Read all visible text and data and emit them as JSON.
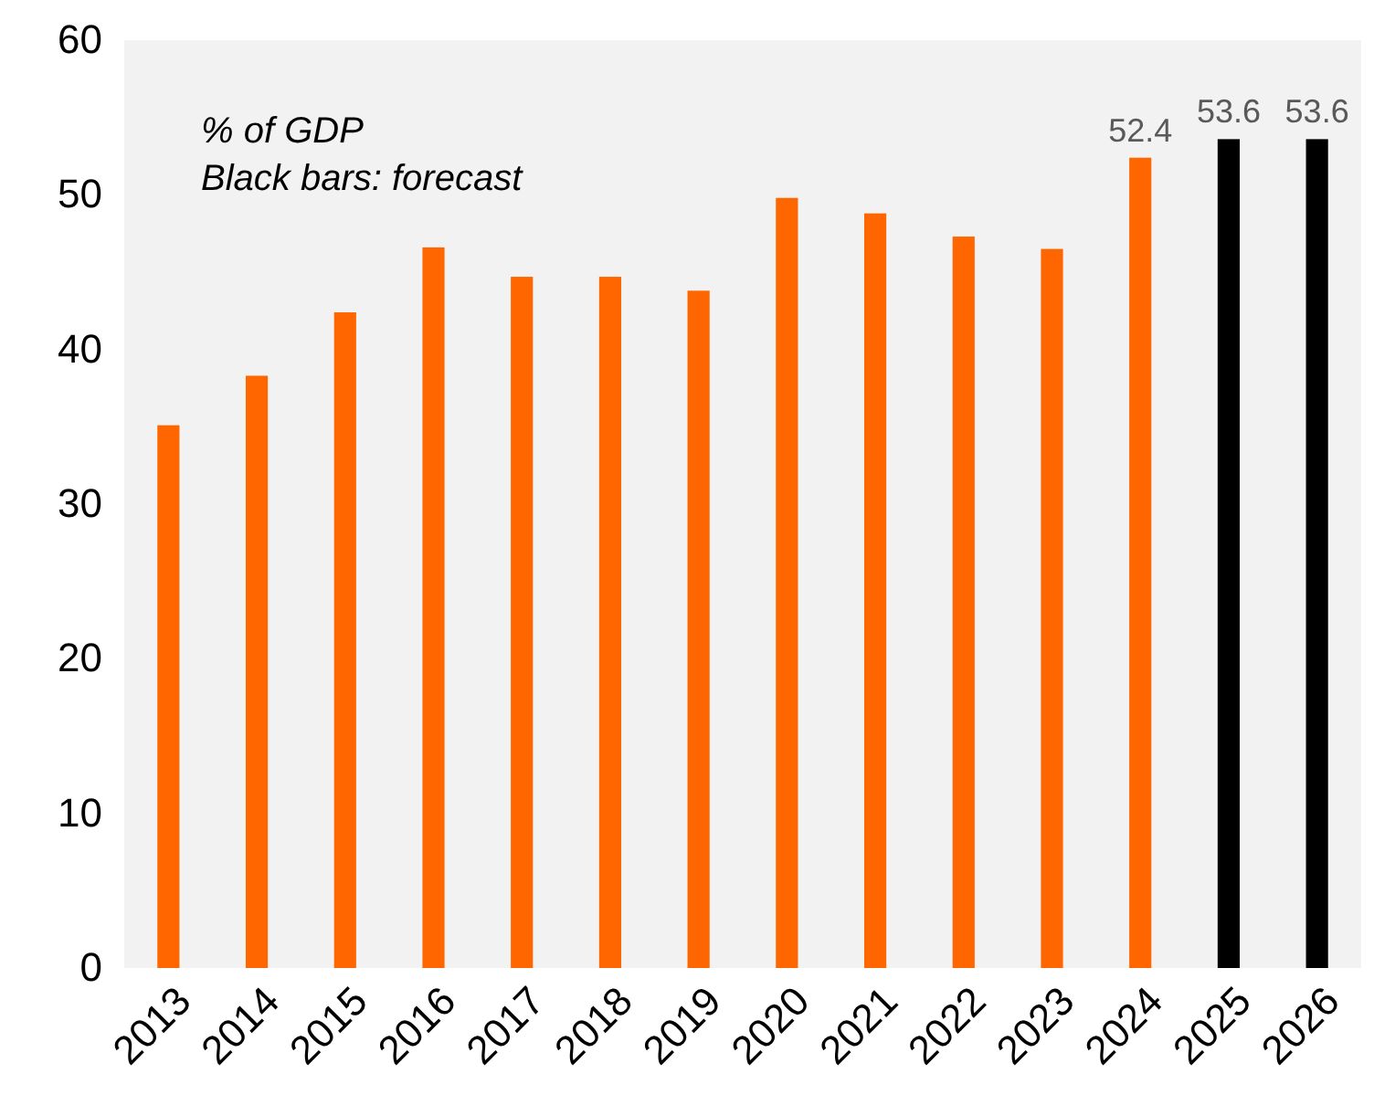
{
  "chart_data": {
    "type": "bar",
    "categories": [
      "2013",
      "2014",
      "2015",
      "2016",
      "2017",
      "2018",
      "2019",
      "2020",
      "2021",
      "2022",
      "2023",
      "2024",
      "2025",
      "2026"
    ],
    "values": [
      35.1,
      38.3,
      42.4,
      46.6,
      44.7,
      44.7,
      43.8,
      49.8,
      48.8,
      47.3,
      46.5,
      52.4,
      53.6,
      53.6
    ],
    "colors": [
      "#ff6600",
      "#ff6600",
      "#ff6600",
      "#ff6600",
      "#ff6600",
      "#ff6600",
      "#ff6600",
      "#ff6600",
      "#ff6600",
      "#ff6600",
      "#ff6600",
      "#ff6600",
      "#000000",
      "#000000"
    ],
    "value_labels": [
      null,
      null,
      null,
      null,
      null,
      null,
      null,
      null,
      null,
      null,
      null,
      "52.4",
      "53.6",
      "53.6"
    ],
    "annotations": [
      "% of GDP",
      "Black bars: forecast"
    ],
    "ylim": [
      0,
      60
    ],
    "yticks": [
      0,
      10,
      20,
      30,
      40,
      50,
      60
    ],
    "grid": false
  }
}
